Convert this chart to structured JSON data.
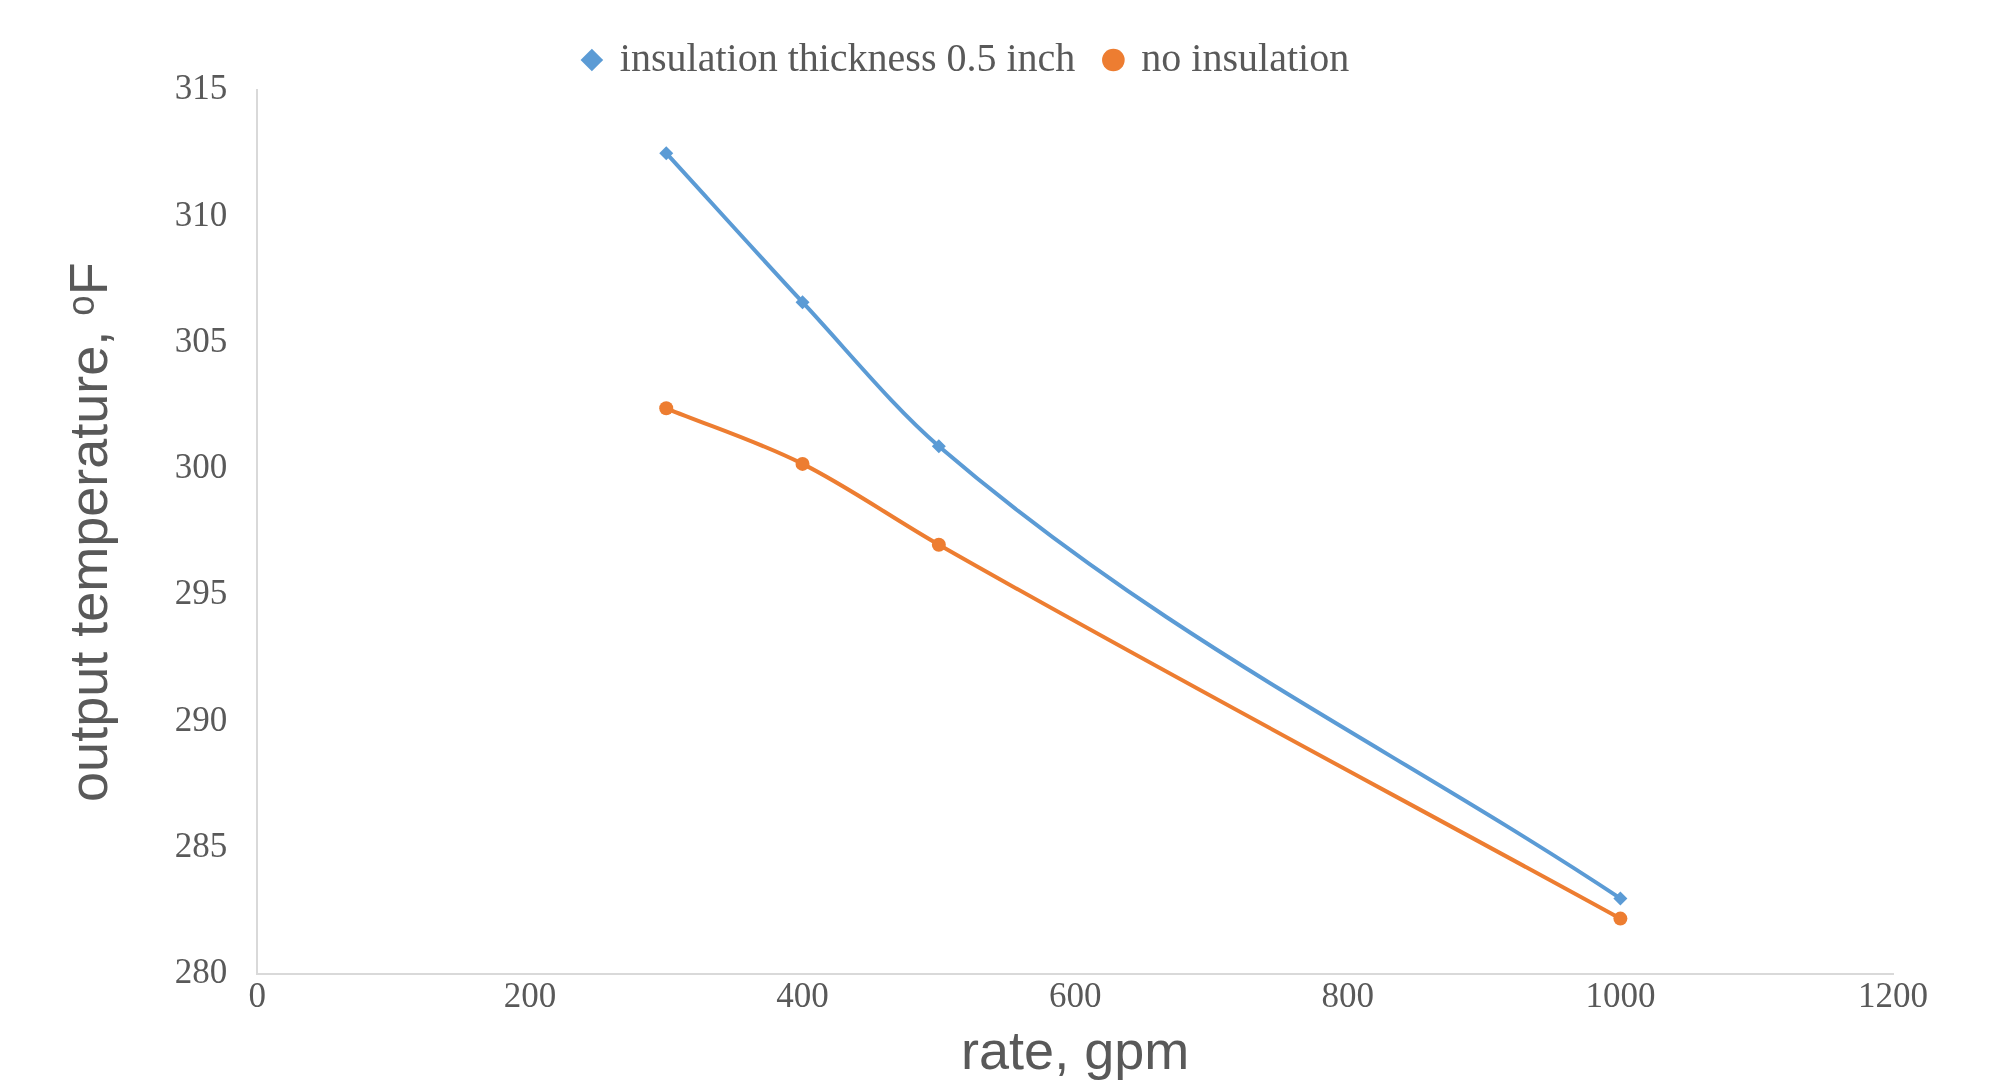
{
  "chart_data": {
    "type": "line",
    "xlabel": "rate, gpm",
    "ylabel": "output temperature, ᵒF",
    "x": [
      300,
      400,
      500,
      1000
    ],
    "series": [
      {
        "name": "insulation thickness 0.5 inch",
        "color": "#5b9bd5",
        "marker": "diamond",
        "values": [
          312.5,
          306.6,
          300.9,
          283.0
        ]
      },
      {
        "name": "no insulation",
        "color": "#ed7d31",
        "marker": "circle",
        "values": [
          302.4,
          300.2,
          297.0,
          282.2
        ]
      }
    ],
    "xlim": [
      0,
      1200
    ],
    "xticks": [
      0,
      200,
      400,
      600,
      800,
      1000,
      1200
    ],
    "ylim": [
      280,
      315
    ],
    "yticks": [
      280,
      285,
      290,
      295,
      300,
      305,
      310,
      315
    ],
    "grid": false,
    "legend": "top",
    "line_style": "solid"
  }
}
